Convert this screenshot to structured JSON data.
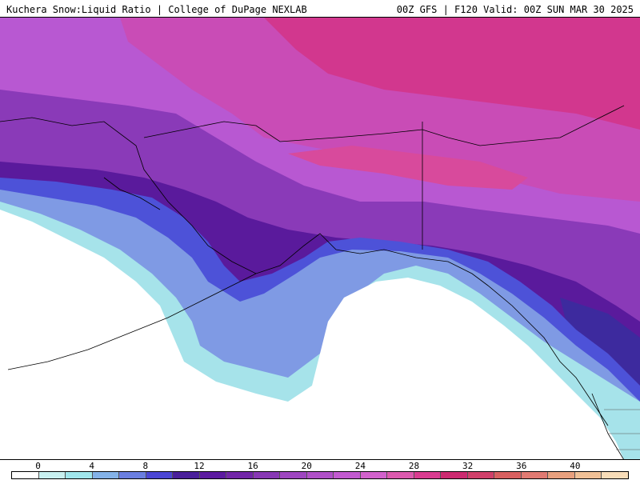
{
  "header": {
    "left_title": "Kuchera Snow:Liquid Ratio | College of DuPage NEXLAB",
    "right_title": "00Z GFS | F120 Valid: 00Z SUN MAR 30 2025"
  },
  "map": {
    "region": "Alaska, Gulf of Alaska and western Canada",
    "ocean_color": "#ffffff",
    "coastline_color": "#000000"
  },
  "colorbar": {
    "tick_labels": [
      "0",
      "4",
      "8",
      "12",
      "16",
      "20",
      "24",
      "28",
      "32",
      "36",
      "40"
    ],
    "colors": [
      "#ffffff",
      "#c8f0f0",
      "#a0e6ec",
      "#84b2e8",
      "#6a7ee0",
      "#4b46d4",
      "#4a1f9a",
      "#5c1aa0",
      "#7226a8",
      "#8838b4",
      "#9e46c0",
      "#b050c8",
      "#c25ad0",
      "#d262cc",
      "#dc5aae",
      "#da3c90",
      "#cc2a70",
      "#d0406a",
      "#d86060",
      "#e07a72",
      "#e8a07e",
      "#f0c096",
      "#f8dcb8"
    ]
  }
}
